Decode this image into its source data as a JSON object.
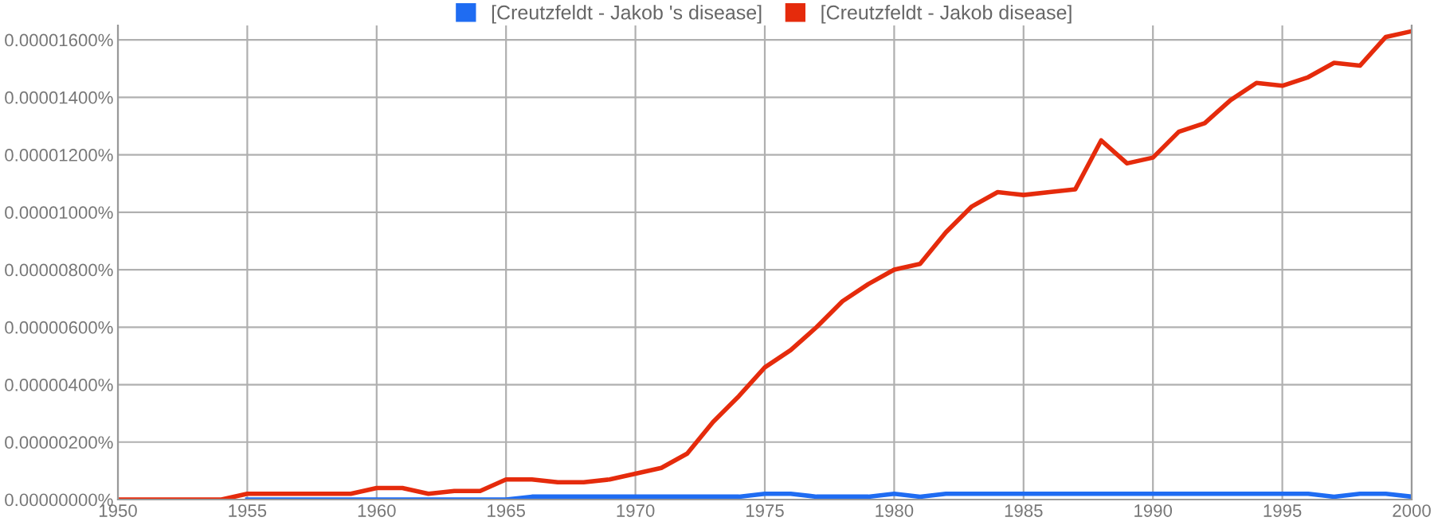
{
  "chart_data": {
    "type": "line",
    "x": [
      1950,
      1951,
      1952,
      1953,
      1954,
      1955,
      1956,
      1957,
      1958,
      1959,
      1960,
      1961,
      1962,
      1963,
      1964,
      1965,
      1966,
      1967,
      1968,
      1969,
      1970,
      1971,
      1972,
      1973,
      1974,
      1975,
      1976,
      1977,
      1978,
      1979,
      1980,
      1981,
      1982,
      1983,
      1984,
      1985,
      1986,
      1987,
      1988,
      1989,
      1990,
      1991,
      1992,
      1993,
      1994,
      1995,
      1996,
      1997,
      1998,
      1999,
      2000
    ],
    "series": [
      {
        "name": "[Creutzfeldt - Jakob 's disease]",
        "color": "#1f6cf2",
        "values": [
          null,
          null,
          null,
          null,
          null,
          0,
          0,
          0,
          0,
          0,
          0,
          0,
          0,
          0,
          0,
          0,
          1e-07,
          1e-07,
          1e-07,
          1e-07,
          1e-07,
          1e-07,
          1e-07,
          1e-07,
          1e-07,
          2e-07,
          2e-07,
          1e-07,
          1e-07,
          1e-07,
          2e-07,
          1e-07,
          2e-07,
          2e-07,
          2e-07,
          2e-07,
          2e-07,
          2e-07,
          2e-07,
          2e-07,
          2e-07,
          2e-07,
          2e-07,
          2e-07,
          2e-07,
          2e-07,
          2e-07,
          1e-07,
          2e-07,
          2e-07,
          1e-07
        ]
      },
      {
        "name": "[Creutzfeldt - Jakob disease]",
        "color": "#e52b0c",
        "values": [
          0,
          0,
          0,
          0,
          0,
          2e-07,
          2e-07,
          2e-07,
          2e-07,
          2e-07,
          4e-07,
          4e-07,
          2e-07,
          3e-07,
          3e-07,
          7e-07,
          7e-07,
          6e-07,
          6e-07,
          7e-07,
          9e-07,
          1.1e-06,
          1.6e-06,
          2.7e-06,
          3.6e-06,
          4.6e-06,
          5.2e-06,
          6e-06,
          6.9e-06,
          7.5e-06,
          8e-06,
          8.2e-06,
          9.3e-06,
          1.02e-05,
          1.07e-05,
          1.06e-05,
          1.07e-05,
          1.08e-05,
          1.25e-05,
          1.17e-05,
          1.19e-05,
          1.28e-05,
          1.31e-05,
          1.39e-05,
          1.45e-05,
          1.44e-05,
          1.47e-05,
          1.52e-05,
          1.51e-05,
          1.61e-05,
          1.63e-05
        ]
      }
    ],
    "xlim": [
      1950,
      2000
    ],
    "xticks": [
      1950,
      1955,
      1960,
      1965,
      1970,
      1975,
      1980,
      1985,
      1990,
      1995,
      2000
    ],
    "ylim": [
      0,
      1.65e-05
    ],
    "yticks": [
      {
        "value": 0,
        "label": "0.00000000%"
      },
      {
        "value": 2e-06,
        "label": "0.00000200%"
      },
      {
        "value": 4e-06,
        "label": "0.00000400%"
      },
      {
        "value": 6e-06,
        "label": "0.00000600%"
      },
      {
        "value": 8e-06,
        "label": "0.00000800%"
      },
      {
        "value": 1e-05,
        "label": "0.00001000%"
      },
      {
        "value": 1.2e-05,
        "label": "0.00001200%"
      },
      {
        "value": 1.4e-05,
        "label": "0.00001400%"
      },
      {
        "value": 1.6e-05,
        "label": "0.00001600%"
      }
    ],
    "grid": true,
    "legend": "top",
    "marker": "none",
    "line_style": "solid"
  }
}
